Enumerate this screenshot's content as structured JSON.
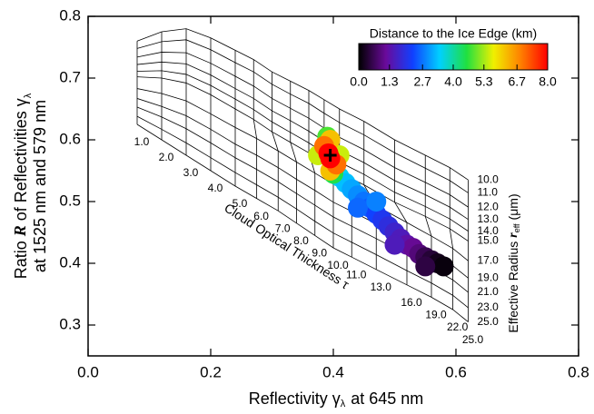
{
  "chart_data": {
    "type": "scatter",
    "xlabel": {
      "pre": "Reflectivity γ",
      "sub": "λ",
      "post": "at 645 nm"
    },
    "ylabel": {
      "pre": "Ratio",
      "var": "R",
      "post": "of Reflectivities γ",
      "sub": "λ",
      "line2": "at 1525 nm and 579 nm"
    },
    "xlim": [
      0,
      0.8
    ],
    "ylim": [
      0.25,
      0.8
    ],
    "xticks": [
      {
        "value": 0,
        "label": "0.0"
      },
      0.2,
      0.4,
      0.6,
      0.8
    ],
    "yticks": [
      0.3,
      0.4,
      0.5,
      0.6,
      0.7,
      0.8
    ],
    "mesh": {
      "tau_label": "Cloud Optical Thickness τ",
      "reff_label": {
        "pre": "Effective Radius",
        "var": "r",
        "sub": "eff",
        "post": "(μm)"
      },
      "tau": [
        {
          "value": 1,
          "label": "1.0"
        },
        {
          "value": 2,
          "label": "2.0"
        },
        {
          "value": 3,
          "label": "3.0"
        },
        {
          "value": 4,
          "label": "4.0"
        },
        {
          "value": 5,
          "label": "5.0"
        },
        {
          "value": 6,
          "label": "6.0"
        },
        {
          "value": 7,
          "label": "7.0"
        },
        {
          "value": 8,
          "label": "8.0"
        },
        {
          "value": 9,
          "label": "9.0"
        },
        {
          "value": 10,
          "label": "10.0"
        },
        {
          "value": 11,
          "label": "11.0"
        },
        {
          "value": 13,
          "label": "13.0"
        },
        {
          "value": 16,
          "label": "16.0"
        },
        {
          "value": 19,
          "label": "19.0"
        },
        {
          "value": 22,
          "label": "22.0"
        },
        {
          "value": 25,
          "label": "25.0"
        }
      ],
      "reff": [
        {
          "value": 10,
          "label": "10.0"
        },
        {
          "value": 11,
          "label": "11.0"
        },
        {
          "value": 12,
          "label": "12.0"
        },
        {
          "value": 13,
          "label": "13.0"
        },
        {
          "value": 14,
          "label": "14.0"
        },
        {
          "value": 15,
          "label": "15.0"
        },
        {
          "value": 17,
          "label": "17.0"
        },
        {
          "value": 19,
          "label": "19.0"
        },
        {
          "value": 21,
          "label": "21.0"
        },
        {
          "value": 23,
          "label": "23.0"
        },
        {
          "value": 25,
          "label": "25.0"
        }
      ],
      "x": [
        [
          0.08,
          0.12,
          0.16,
          0.2,
          0.24,
          0.27,
          0.3,
          0.33,
          0.36,
          0.385,
          0.41,
          0.45,
          0.5,
          0.55,
          0.59,
          0.62
        ],
        [
          0.08,
          0.12,
          0.16,
          0.2,
          0.24,
          0.27,
          0.3,
          0.33,
          0.36,
          0.385,
          0.41,
          0.45,
          0.5,
          0.55,
          0.59,
          0.62
        ],
        [
          0.08,
          0.12,
          0.16,
          0.2,
          0.24,
          0.27,
          0.3,
          0.33,
          0.36,
          0.385,
          0.41,
          0.45,
          0.5,
          0.55,
          0.59,
          0.62
        ],
        [
          0.08,
          0.12,
          0.16,
          0.2,
          0.24,
          0.27,
          0.3,
          0.33,
          0.36,
          0.385,
          0.41,
          0.45,
          0.5,
          0.55,
          0.59,
          0.62
        ],
        [
          0.08,
          0.12,
          0.16,
          0.2,
          0.24,
          0.27,
          0.3,
          0.33,
          0.36,
          0.385,
          0.41,
          0.45,
          0.5,
          0.55,
          0.59,
          0.62
        ],
        [
          0.08,
          0.12,
          0.16,
          0.2,
          0.24,
          0.27,
          0.3,
          0.33,
          0.36,
          0.385,
          0.41,
          0.45,
          0.5,
          0.55,
          0.59,
          0.62
        ],
        [
          0.08,
          0.12,
          0.16,
          0.2,
          0.24,
          0.275,
          0.31,
          0.34,
          0.37,
          0.4,
          0.43,
          0.47,
          0.52,
          0.56,
          0.595,
          0.62
        ],
        [
          0.08,
          0.12,
          0.16,
          0.2,
          0.24,
          0.275,
          0.31,
          0.34,
          0.37,
          0.4,
          0.43,
          0.47,
          0.52,
          0.56,
          0.595,
          0.62
        ],
        [
          0.08,
          0.12,
          0.16,
          0.2,
          0.24,
          0.275,
          0.31,
          0.34,
          0.37,
          0.4,
          0.43,
          0.47,
          0.52,
          0.56,
          0.595,
          0.62
        ],
        [
          0.08,
          0.12,
          0.16,
          0.2,
          0.24,
          0.275,
          0.31,
          0.34,
          0.37,
          0.4,
          0.43,
          0.47,
          0.52,
          0.56,
          0.595,
          0.62
        ],
        [
          0.08,
          0.12,
          0.16,
          0.2,
          0.24,
          0.275,
          0.31,
          0.34,
          0.37,
          0.4,
          0.43,
          0.47,
          0.52,
          0.56,
          0.595,
          0.62
        ]
      ],
      "y": [
        [
          0.76,
          0.775,
          0.78,
          0.765,
          0.745,
          0.73,
          0.71,
          0.695,
          0.68,
          0.665,
          0.65,
          0.63,
          0.6,
          0.575,
          0.555,
          0.535
        ],
        [
          0.748,
          0.759,
          0.762,
          0.746,
          0.725,
          0.71,
          0.69,
          0.674,
          0.659,
          0.643,
          0.628,
          0.608,
          0.579,
          0.554,
          0.534,
          0.514
        ],
        [
          0.734,
          0.742,
          0.741,
          0.724,
          0.703,
          0.687,
          0.667,
          0.651,
          0.635,
          0.619,
          0.604,
          0.584,
          0.555,
          0.531,
          0.511,
          0.491
        ],
        [
          0.722,
          0.726,
          0.723,
          0.705,
          0.683,
          0.667,
          0.647,
          0.631,
          0.614,
          0.598,
          0.583,
          0.563,
          0.534,
          0.511,
          0.491,
          0.471
        ],
        [
          0.711,
          0.712,
          0.706,
          0.688,
          0.666,
          0.649,
          0.629,
          0.612,
          0.595,
          0.579,
          0.564,
          0.544,
          0.515,
          0.492,
          0.472,
          0.452
        ],
        [
          0.702,
          0.7,
          0.692,
          0.673,
          0.65,
          0.633,
          0.613,
          0.596,
          0.579,
          0.562,
          0.547,
          0.527,
          0.499,
          0.476,
          0.456,
          0.436
        ],
        [
          0.683,
          0.675,
          0.663,
          0.642,
          0.62,
          0.602,
          0.582,
          0.564,
          0.546,
          0.528,
          0.513,
          0.493,
          0.466,
          0.444,
          0.424,
          0.404
        ],
        [
          0.667,
          0.654,
          0.639,
          0.617,
          0.593,
          0.575,
          0.555,
          0.536,
          0.518,
          0.499,
          0.484,
          0.464,
          0.438,
          0.416,
          0.396,
          0.376
        ],
        [
          0.653,
          0.637,
          0.618,
          0.595,
          0.571,
          0.552,
          0.532,
          0.513,
          0.494,
          0.475,
          0.46,
          0.44,
          0.414,
          0.393,
          0.373,
          0.353
        ],
        [
          0.638,
          0.617,
          0.595,
          0.571,
          0.547,
          0.527,
          0.507,
          0.488,
          0.468,
          0.449,
          0.434,
          0.414,
          0.388,
          0.368,
          0.348,
          0.328
        ],
        [
          0.625,
          0.6,
          0.575,
          0.55,
          0.525,
          0.505,
          0.485,
          0.465,
          0.445,
          0.425,
          0.41,
          0.39,
          0.365,
          0.345,
          0.325,
          0.305
        ]
      ]
    },
    "points": {
      "x": [
        0.41,
        0.42,
        0.43,
        0.44,
        0.45,
        0.46,
        0.47,
        0.48,
        0.49,
        0.5,
        0.51,
        0.52,
        0.53,
        0.54,
        0.55,
        0.56,
        0.57,
        0.58,
        0.44,
        0.47,
        0.5,
        0.55,
        0.39,
        0.4,
        0.375,
        0.41,
        0.395,
        0.395,
        0.385,
        0.405,
        0.392,
        0.395
      ],
      "y": [
        0.54,
        0.53,
        0.52,
        0.51,
        0.5,
        0.49,
        0.48,
        0.47,
        0.46,
        0.45,
        0.44,
        0.43,
        0.425,
        0.415,
        0.41,
        0.405,
        0.4,
        0.395,
        0.49,
        0.5,
        0.43,
        0.395,
        0.605,
        0.545,
        0.575,
        0.575,
        0.6,
        0.55,
        0.59,
        0.56,
        0.578,
        0.57
      ],
      "distance": [
        3.5,
        3.3,
        3.1,
        2.9,
        2.7,
        2.5,
        2.3,
        2.1,
        1.9,
        1.7,
        1.5,
        1.3,
        1.1,
        0.9,
        0.6,
        0.4,
        0.2,
        0.1,
        2.6,
        2.8,
        1.5,
        0.5,
        4.8,
        4.5,
        5.5,
        5.5,
        6.2,
        6.2,
        7,
        7,
        8,
        8
      ]
    },
    "marker": {
      "x": 0.395,
      "y": 0.575
    },
    "colorbar": {
      "title": "Distance to the Ice Edge (km)",
      "lim": [
        0,
        8
      ],
      "ticks": [
        {
          "value": 0,
          "label": "0.0"
        },
        1.3,
        2.7,
        {
          "value": 4,
          "label": "4.0"
        },
        5.3,
        6.7,
        {
          "value": 8,
          "label": "8.0"
        }
      ],
      "colors": [
        "#000000",
        "#6a0a9a",
        "#1040ff",
        "#00d0ff",
        "#20e040",
        "#f0f000",
        "#ff8000",
        "#ff0000"
      ]
    }
  }
}
